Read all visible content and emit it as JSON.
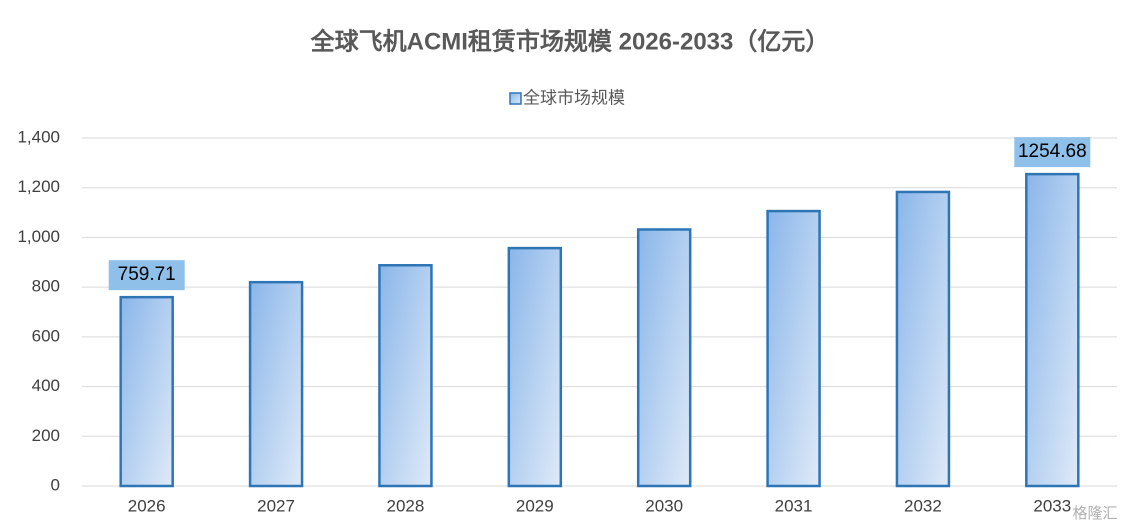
{
  "chart_data": {
    "type": "bar",
    "title": "全球飞机ACMI租赁市场规模 2026-2033（亿元）",
    "categories": [
      "2026",
      "2027",
      "2028",
      "2029",
      "2030",
      "2031",
      "2032",
      "2033"
    ],
    "series": [
      {
        "name": "全球市场规模",
        "color": "#2e75b6",
        "values": [
          759.71,
          820,
          888,
          957,
          1032,
          1106,
          1183,
          1254.68
        ],
        "value_labels": [
          "759.71",
          null,
          null,
          null,
          null,
          null,
          null,
          "1254.68"
        ]
      }
    ],
    "ylim": [
      0,
      1400
    ],
    "yticks": [
      0,
      200,
      400,
      600,
      800,
      {
        "value": 1000,
        "label": "1,000"
      },
      {
        "value": 1200,
        "label": "1,200"
      },
      {
        "value": 1400,
        "label": "1,400"
      }
    ],
    "grid": true,
    "legend": "top",
    "watermark": "格隆汇"
  }
}
